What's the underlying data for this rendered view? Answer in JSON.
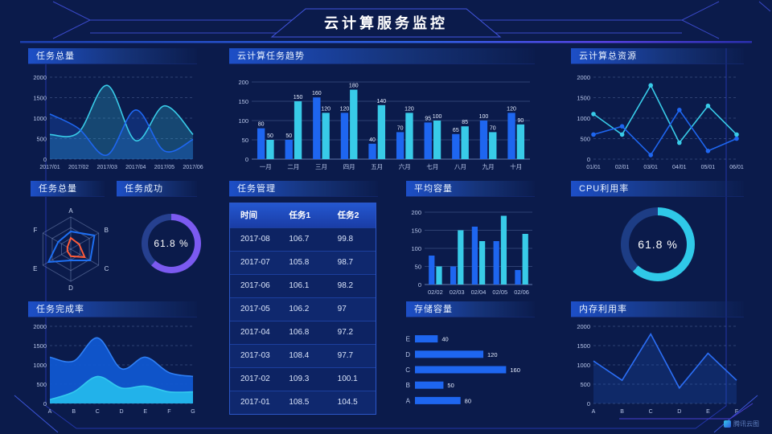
{
  "header": {
    "title": "云计算服务监控"
  },
  "watermark": {
    "label": "腾讯云图"
  },
  "panels": {
    "tasks_total_line": {
      "title": "任务总量"
    },
    "task_trend": {
      "title": "云计算任务趋势"
    },
    "total_resources": {
      "title": "云计算总资源"
    },
    "tasks_radar": {
      "title": "任务总量"
    },
    "task_success": {
      "title": "任务成功",
      "value": "61.8 %"
    },
    "task_table": {
      "title": "任务管理"
    },
    "avg_capacity": {
      "title": "平均容量"
    },
    "cpu": {
      "title": "CPU利用率",
      "value": "61.8 %"
    },
    "completion": {
      "title": "任务完成率"
    },
    "storage": {
      "title": "存储容量"
    },
    "memory": {
      "title": "内存利用率"
    }
  },
  "colors": {
    "background": "#0b1b4b",
    "accent_blue": "#1e66f0",
    "accent_cyan": "#38cbe8",
    "accent_purple": "#7b5af0",
    "accent_orange": "#ff5b38",
    "title_bar": "#1d4fc7",
    "frame_line": "#2f46c8"
  },
  "chart_data": [
    {
      "id": "tasks-total-line",
      "type": "line",
      "title": "任务总量",
      "smooth": true,
      "markers": false,
      "x": [
        "2017/01",
        "2017/02",
        "2017/03",
        "2017/04",
        "2017/05",
        "2017/06"
      ],
      "ylim": [
        0,
        2000
      ],
      "yticks": [
        0,
        500,
        1000,
        1500,
        2000
      ],
      "grid": "dashed",
      "series": [
        {
          "name": "series-cyan",
          "color": "#38cbe8",
          "area": true,
          "fill_opacity": 0.25,
          "values": [
            600,
            650,
            1800,
            450,
            1300,
            600
          ]
        },
        {
          "name": "series-blue",
          "color": "#1e66f0",
          "area": true,
          "fill_opacity": 0.25,
          "values": [
            1100,
            750,
            100,
            1200,
            200,
            480
          ]
        }
      ]
    },
    {
      "id": "task-trend-bar",
      "type": "bar",
      "title": "云计算任务趋势",
      "categories": [
        "一月",
        "二月",
        "三月",
        "四月",
        "五月",
        "六月",
        "七月",
        "八月",
        "九月",
        "十月"
      ],
      "ylim": [
        0,
        200
      ],
      "yticks": [
        0,
        50,
        100,
        150,
        200
      ],
      "value_labels": true,
      "series": [
        {
          "name": "任务1",
          "color": "#1e66f0",
          "values": [
            80,
            50,
            160,
            120,
            40,
            70,
            95,
            65,
            100,
            120
          ]
        },
        {
          "name": "任务2",
          "color": "#38cbe8",
          "values": [
            50,
            150,
            120,
            180,
            140,
            120,
            100,
            85,
            70,
            90
          ]
        }
      ]
    },
    {
      "id": "total-resources-line",
      "type": "line",
      "title": "云计算总资源",
      "smooth": false,
      "markers": true,
      "x": [
        "01/01",
        "02/01",
        "03/01",
        "04/01",
        "05/01",
        "06/01"
      ],
      "ylim": [
        0,
        2000
      ],
      "yticks": [
        0,
        500,
        1000,
        1500,
        2000
      ],
      "grid": "dashed",
      "series": [
        {
          "name": "series-cyan",
          "color": "#38cbe8",
          "values": [
            1100,
            600,
            1800,
            400,
            1300,
            600
          ]
        },
        {
          "name": "series-blue",
          "color": "#1e66f0",
          "values": [
            600,
            800,
            100,
            1200,
            200,
            500
          ]
        }
      ]
    },
    {
      "id": "tasks-radar",
      "type": "radar",
      "title": "任务总量",
      "axes": [
        "A",
        "B",
        "C",
        "D",
        "E",
        "F"
      ],
      "max": 100,
      "levels": 3,
      "series": [
        {
          "name": "radar-blue",
          "color": "#1e6ff2",
          "values": [
            55,
            85,
            70,
            35,
            80,
            45
          ]
        },
        {
          "name": "radar-orange",
          "color": "#ff5b38",
          "values": [
            35,
            30,
            50,
            22,
            12,
            12
          ]
        }
      ]
    },
    {
      "id": "task-success-donut",
      "type": "donut",
      "title": "任务成功",
      "value": 61.8,
      "label": "61.8 %",
      "color": "#7b5af0",
      "track": "#26408f"
    },
    {
      "id": "task-table",
      "type": "table",
      "title": "任务管理",
      "headers": [
        "时间",
        "任务1",
        "任务2"
      ],
      "rows": [
        [
          "2017-08",
          "106.7",
          "99.8"
        ],
        [
          "2017-07",
          "105.8",
          "98.7"
        ],
        [
          "2017-06",
          "106.1",
          "98.2"
        ],
        [
          "2017-05",
          "106.2",
          "97"
        ],
        [
          "2017-04",
          "106.8",
          "97.2"
        ],
        [
          "2017-03",
          "108.4",
          "97.7"
        ],
        [
          "2017-02",
          "109.3",
          "100.1"
        ],
        [
          "2017-01",
          "108.5",
          "104.5"
        ]
      ]
    },
    {
      "id": "avg-capacity-bar",
      "type": "bar",
      "title": "平均容量",
      "categories": [
        "02/02",
        "02/03",
        "02/04",
        "02/05",
        "02/06"
      ],
      "ylim": [
        0,
        200
      ],
      "yticks": [
        0,
        50,
        100,
        150,
        200
      ],
      "value_labels": false,
      "series": [
        {
          "name": "series-blue",
          "color": "#1e66f0",
          "values": [
            80,
            50,
            160,
            120,
            40
          ]
        },
        {
          "name": "series-cyan",
          "color": "#38cbe8",
          "values": [
            50,
            150,
            120,
            190,
            140
          ]
        }
      ]
    },
    {
      "id": "cpu-donut",
      "type": "donut",
      "title": "CPU利用率",
      "value": 61.8,
      "label": "61.8 %",
      "color": "#2fc9e8",
      "track": "#1d3d85"
    },
    {
      "id": "completion-area",
      "type": "line",
      "title": "任务完成率",
      "smooth": true,
      "markers": false,
      "x": [
        "A",
        "B",
        "C",
        "D",
        "E",
        "F",
        "G"
      ],
      "ylim": [
        0,
        2000
      ],
      "yticks": [
        0,
        500,
        1000,
        1500,
        2000
      ],
      "grid": "dashed",
      "series": [
        {
          "name": "area-blue",
          "color": "#2f7ff5",
          "fill": "#1057d0",
          "fill_opacity": 0.95,
          "area": true,
          "values": [
            1200,
            1100,
            1700,
            900,
            1200,
            800,
            700
          ]
        },
        {
          "name": "area-cyan",
          "color": "#33c9ee",
          "fill": "#22b2ea",
          "fill_opacity": 1,
          "area": true,
          "values": [
            100,
            300,
            700,
            400,
            450,
            300,
            300
          ]
        }
      ]
    },
    {
      "id": "storage-hbar",
      "type": "hbar",
      "title": "存储容量",
      "categories": [
        "E",
        "D",
        "C",
        "B",
        "A"
      ],
      "values": [
        40,
        120,
        160,
        50,
        80
      ],
      "xmax": 175,
      "color": "#1e66f0",
      "value_labels": true
    },
    {
      "id": "memory-line",
      "type": "line",
      "title": "内存利用率",
      "smooth": false,
      "markers": false,
      "x": [
        "A",
        "B",
        "C",
        "D",
        "E",
        "F"
      ],
      "ylim": [
        0,
        2000
      ],
      "yticks": [
        0,
        500,
        1000,
        1500,
        2000
      ],
      "grid": "dashed",
      "series": [
        {
          "name": "series-blue",
          "color": "#2b6ef5",
          "fill": "#1e5ad0",
          "fill_opacity": 0.22,
          "area": true,
          "values": [
            1100,
            600,
            1800,
            400,
            1300,
            600
          ]
        }
      ]
    }
  ]
}
